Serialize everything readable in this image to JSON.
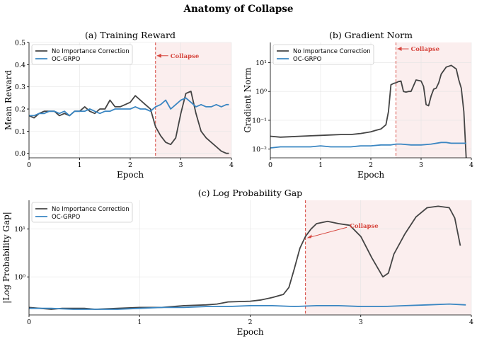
{
  "figure": {
    "title": "Anatomy of Collapse",
    "colors": {
      "no_correction": "#444444",
      "oc_grpo": "#3a86c2",
      "collapse_line": "#d6453d",
      "collapse_region": "#fbeeee"
    }
  },
  "chart_data": [
    {
      "id": "a",
      "type": "line",
      "title": "(a) Training Reward",
      "xlabel": "Epoch",
      "ylabel": "Mean Reward",
      "xlim": [
        0,
        4
      ],
      "ylim": [
        -0.02,
        0.5
      ],
      "yscale": "linear",
      "xticks": [
        0,
        1,
        2,
        3,
        4
      ],
      "yticks": [
        0.0,
        0.1,
        0.2,
        0.3,
        0.4,
        0.5
      ],
      "ytick_labels": [
        "0.0",
        "0.1",
        "0.2",
        "0.3",
        "0.4",
        "0.5"
      ],
      "grid": true,
      "legend": "top-left",
      "collapse_x": 2.5,
      "annotation": {
        "text": "Collapse",
        "x": 2.5,
        "y": 0.44
      },
      "series": [
        {
          "name": "No Importance Correction",
          "x": [
            0,
            0.1,
            0.2,
            0.3,
            0.4,
            0.5,
            0.6,
            0.7,
            0.8,
            0.9,
            1.0,
            1.1,
            1.2,
            1.3,
            1.4,
            1.5,
            1.6,
            1.7,
            1.8,
            1.9,
            2.0,
            2.1,
            2.2,
            2.3,
            2.4,
            2.5,
            2.6,
            2.7,
            2.8,
            2.9,
            3.0,
            3.1,
            3.2,
            3.3,
            3.4,
            3.5,
            3.6,
            3.7,
            3.8,
            3.9,
            3.95
          ],
          "y": [
            0.17,
            0.16,
            0.18,
            0.19,
            0.19,
            0.19,
            0.17,
            0.18,
            0.17,
            0.19,
            0.19,
            0.21,
            0.19,
            0.18,
            0.2,
            0.2,
            0.24,
            0.21,
            0.21,
            0.22,
            0.23,
            0.26,
            0.24,
            0.22,
            0.2,
            0.12,
            0.08,
            0.05,
            0.04,
            0.07,
            0.18,
            0.27,
            0.28,
            0.18,
            0.1,
            0.07,
            0.05,
            0.03,
            0.01,
            0.0,
            0.0
          ]
        },
        {
          "name": "OC-GRPO",
          "x": [
            0,
            0.1,
            0.2,
            0.3,
            0.4,
            0.5,
            0.6,
            0.7,
            0.8,
            0.9,
            1.0,
            1.1,
            1.2,
            1.3,
            1.4,
            1.5,
            1.6,
            1.7,
            1.8,
            1.9,
            2.0,
            2.1,
            2.2,
            2.3,
            2.4,
            2.5,
            2.6,
            2.7,
            2.8,
            2.9,
            3.0,
            3.1,
            3.2,
            3.3,
            3.4,
            3.5,
            3.6,
            3.7,
            3.8,
            3.9,
            3.95
          ],
          "y": [
            0.17,
            0.17,
            0.18,
            0.18,
            0.19,
            0.19,
            0.18,
            0.19,
            0.17,
            0.19,
            0.19,
            0.19,
            0.2,
            0.19,
            0.18,
            0.19,
            0.19,
            0.2,
            0.2,
            0.2,
            0.2,
            0.21,
            0.2,
            0.2,
            0.19,
            0.21,
            0.22,
            0.24,
            0.2,
            0.22,
            0.24,
            0.25,
            0.23,
            0.21,
            0.22,
            0.21,
            0.21,
            0.22,
            0.21,
            0.22,
            0.22
          ]
        }
      ]
    },
    {
      "id": "b",
      "type": "line",
      "title": "(b) Gradient Norm",
      "xlabel": "Epoch",
      "ylabel": "Gradient Norm",
      "xlim": [
        0,
        4
      ],
      "ylim": [
        0.005,
        50
      ],
      "yscale": "log",
      "xticks": [
        0,
        1,
        2,
        3,
        4
      ],
      "yticks": [
        0.01,
        0.1,
        1,
        10
      ],
      "ytick_labels": [
        "10⁻²",
        "10⁻¹",
        "10⁰",
        "10¹"
      ],
      "grid": true,
      "legend": "top-left",
      "collapse_x": 2.5,
      "annotation": {
        "text": "Collapse",
        "x": 2.5,
        "y": 30
      },
      "series": [
        {
          "name": "No Importance Correction",
          "x": [
            0,
            0.2,
            0.4,
            0.6,
            0.8,
            1.0,
            1.2,
            1.4,
            1.6,
            1.8,
            2.0,
            2.1,
            2.2,
            2.3,
            2.35,
            2.4,
            2.45,
            2.5,
            2.55,
            2.6,
            2.65,
            2.7,
            2.75,
            2.8,
            2.9,
            3.0,
            3.05,
            3.1,
            3.15,
            3.2,
            3.25,
            3.3,
            3.35,
            3.4,
            3.5,
            3.6,
            3.7,
            3.75,
            3.8,
            3.85,
            3.9
          ],
          "y": [
            0.028,
            0.026,
            0.027,
            0.028,
            0.029,
            0.03,
            0.031,
            0.032,
            0.032,
            0.035,
            0.04,
            0.045,
            0.05,
            0.07,
            0.2,
            1.7,
            1.9,
            2.0,
            2.2,
            2.3,
            1.0,
            0.95,
            1.0,
            1.0,
            2.5,
            2.3,
            1.5,
            0.35,
            0.32,
            0.7,
            1.2,
            1.3,
            2.0,
            4.0,
            7.0,
            8.0,
            6.0,
            2.5,
            1.3,
            0.2,
            0.004
          ]
        },
        {
          "name": "OC-GRPO",
          "x": [
            0,
            0.2,
            0.4,
            0.6,
            0.8,
            1.0,
            1.2,
            1.4,
            1.6,
            1.8,
            2.0,
            2.2,
            2.4,
            2.5,
            2.6,
            2.8,
            3.0,
            3.2,
            3.4,
            3.5,
            3.6,
            3.8,
            3.9
          ],
          "y": [
            0.011,
            0.012,
            0.012,
            0.012,
            0.012,
            0.013,
            0.012,
            0.012,
            0.012,
            0.013,
            0.013,
            0.014,
            0.014,
            0.015,
            0.015,
            0.014,
            0.014,
            0.015,
            0.017,
            0.017,
            0.016,
            0.016,
            0.016
          ]
        }
      ]
    },
    {
      "id": "c",
      "type": "line",
      "title": "(c) Log Probability Gap",
      "xlabel": "Epoch",
      "ylabel": "|Log Probability Gap|",
      "xlim": [
        0,
        4
      ],
      "ylim": [
        0.16,
        40
      ],
      "yscale": "log",
      "xticks": [
        0,
        1,
        2,
        3,
        4
      ],
      "yticks": [
        1,
        10
      ],
      "ytick_labels": [
        "10⁰",
        "10¹"
      ],
      "grid": true,
      "legend": "top-left",
      "collapse_x": 2.5,
      "annotation": {
        "text": "Collapse",
        "x": 2.5,
        "y": 6.5
      },
      "series": [
        {
          "name": "No Importance Correction",
          "x": [
            0,
            0.1,
            0.2,
            0.3,
            0.4,
            0.5,
            0.6,
            0.8,
            1.0,
            1.2,
            1.4,
            1.6,
            1.7,
            1.8,
            2.0,
            2.1,
            2.2,
            2.3,
            2.35,
            2.4,
            2.45,
            2.5,
            2.55,
            2.6,
            2.7,
            2.8,
            2.9,
            3.0,
            3.1,
            3.2,
            3.25,
            3.3,
            3.4,
            3.5,
            3.6,
            3.7,
            3.8,
            3.85,
            3.9
          ],
          "y": [
            0.23,
            0.22,
            0.21,
            0.22,
            0.22,
            0.22,
            0.21,
            0.22,
            0.23,
            0.23,
            0.25,
            0.26,
            0.27,
            0.3,
            0.31,
            0.33,
            0.37,
            0.43,
            0.6,
            1.5,
            4.0,
            7.0,
            10.0,
            13.0,
            14.5,
            13.0,
            12.0,
            7.0,
            2.5,
            1.0,
            1.2,
            3.0,
            8.0,
            18.0,
            28.0,
            30.0,
            28.0,
            17.0,
            4.5
          ]
        },
        {
          "name": "OC-GRPO",
          "x": [
            0,
            0.2,
            0.4,
            0.6,
            0.8,
            1.0,
            1.2,
            1.4,
            1.6,
            1.8,
            2.0,
            2.2,
            2.4,
            2.6,
            2.8,
            3.0,
            3.2,
            3.4,
            3.6,
            3.8,
            3.95
          ],
          "y": [
            0.22,
            0.22,
            0.21,
            0.21,
            0.21,
            0.22,
            0.23,
            0.23,
            0.24,
            0.24,
            0.25,
            0.25,
            0.24,
            0.25,
            0.25,
            0.24,
            0.24,
            0.25,
            0.26,
            0.27,
            0.26
          ]
        }
      ]
    }
  ]
}
